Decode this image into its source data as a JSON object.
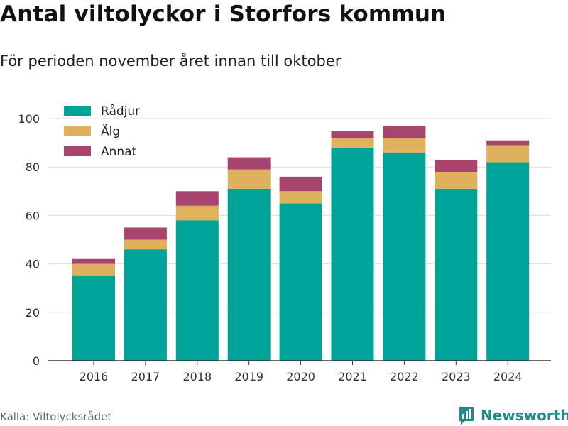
{
  "title": "Antal viltolyckor i Storfors kommun",
  "subtitle": "För perioden november året innan till oktober",
  "source": "Källa: Viltolycksrådet",
  "brand": "Newsworthy",
  "colors": {
    "radjur": "#00a398",
    "alg": "#e0b15c",
    "annat": "#a8456e",
    "grid": "#dddddd",
    "axis": "#333333",
    "brand": "#1f8a87"
  },
  "icons": {
    "brand": "bar-chart-logo-icon"
  },
  "chart_data": {
    "type": "bar",
    "stacked": true,
    "categories": [
      "2016",
      "2017",
      "2018",
      "2019",
      "2020",
      "2021",
      "2022",
      "2023",
      "2024"
    ],
    "series": [
      {
        "name": "Rådjur",
        "color": "#00a398",
        "values": [
          35,
          46,
          58,
          71,
          65,
          88,
          86,
          71,
          82
        ]
      },
      {
        "name": "Älg",
        "color": "#e0b15c",
        "values": [
          5,
          4,
          6,
          8,
          5,
          4,
          6,
          7,
          7
        ]
      },
      {
        "name": "Annat",
        "color": "#a8456e",
        "values": [
          2,
          5,
          6,
          5,
          6,
          3,
          5,
          5,
          2
        ]
      }
    ],
    "ylim": [
      0,
      100
    ],
    "yticks": [
      0,
      20,
      40,
      60,
      80,
      100
    ],
    "grid": true,
    "legend": "top-left"
  }
}
